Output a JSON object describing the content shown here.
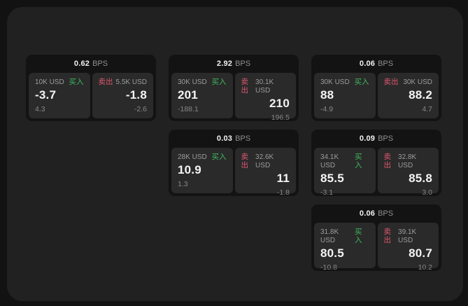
{
  "labels": {
    "bps_unit": "BPS",
    "buy": "买入",
    "sell": "卖出"
  },
  "colors": {
    "page_background": "#121212",
    "panel_background": "#212121",
    "card_background": "#131313",
    "subpanel_background": "#2a2a2a",
    "buy": "#3fb95f",
    "sell": "#dd5670",
    "primary_text": "#f4f4f4",
    "secondary_text": "#9c9c9c"
  },
  "cards": [
    {
      "row": 1,
      "col": 1,
      "bps": "0.62",
      "buy": {
        "amount": "10K USD",
        "price": "-3.7",
        "change": "4.3"
      },
      "sell": {
        "amount": "5.5K USD",
        "price": "-1.8",
        "change": "-2.6"
      }
    },
    {
      "row": 1,
      "col": 2,
      "bps": "2.92",
      "buy": {
        "amount": "30K USD",
        "price": "201",
        "change": "-188.1"
      },
      "sell": {
        "amount": "30.1K USD",
        "price": "210",
        "change": "196.5"
      }
    },
    {
      "row": 1,
      "col": 3,
      "bps": "0.06",
      "buy": {
        "amount": "30K USD",
        "price": "88",
        "change": "-4.9"
      },
      "sell": {
        "amount": "30K USD",
        "price": "88.2",
        "change": "4.7"
      }
    },
    {
      "row": 2,
      "col": 2,
      "bps": "0.03",
      "buy": {
        "amount": "28K USD",
        "price": "10.9",
        "change": "1.3"
      },
      "sell": {
        "amount": "32.6K USD",
        "price": "11",
        "change": "-1.8"
      }
    },
    {
      "row": 2,
      "col": 3,
      "bps": "0.09",
      "buy": {
        "amount": "34.1K USD",
        "price": "85.5",
        "change": "-3.1"
      },
      "sell": {
        "amount": "32.8K USD",
        "price": "85.8",
        "change": "3.0"
      }
    },
    {
      "row": 3,
      "col": 3,
      "bps": "0.06",
      "buy": {
        "amount": "31.8K USD",
        "price": "80.5",
        "change": "-10.8"
      },
      "sell": {
        "amount": "39.1K USD",
        "price": "80.7",
        "change": "10.2"
      }
    }
  ]
}
